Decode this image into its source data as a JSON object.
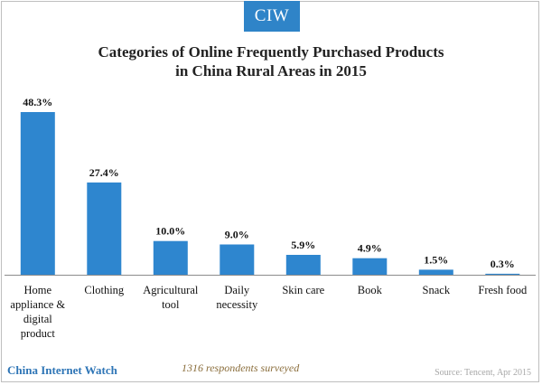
{
  "logo": "CIW",
  "chart_data": {
    "type": "bar",
    "title": "Categories of Online Frequently Purchased Products\nin China Rural Areas in 2015",
    "categories": [
      "Home appliance & digital product",
      "Clothing",
      "Agricultural tool",
      "Daily necessity",
      "Skin care",
      "Book",
      "Snack",
      "Fresh food"
    ],
    "category_lines": [
      [
        "Home",
        "appliance &",
        "digital",
        "product"
      ],
      [
        "Clothing"
      ],
      [
        "Agricultural",
        "tool"
      ],
      [
        "Daily",
        "necessity"
      ],
      [
        "Skin care"
      ],
      [
        "Book"
      ],
      [
        "Snack"
      ],
      [
        "Fresh food"
      ]
    ],
    "values": [
      48.3,
      27.4,
      10.0,
      9.0,
      5.9,
      4.9,
      1.5,
      0.3
    ],
    "data_labels": [
      "48.3%",
      "27.4%",
      "10.0%",
      "9.0%",
      "5.9%",
      "4.9%",
      "1.5%",
      "0.3%"
    ],
    "ylim": [
      0,
      50
    ],
    "grid": false,
    "bar_color": "#2e86cf"
  },
  "footer": {
    "brand": "China Internet Watch",
    "note": "1316 respondents surveyed",
    "source": "Source: Tencent, Apr 2015"
  }
}
